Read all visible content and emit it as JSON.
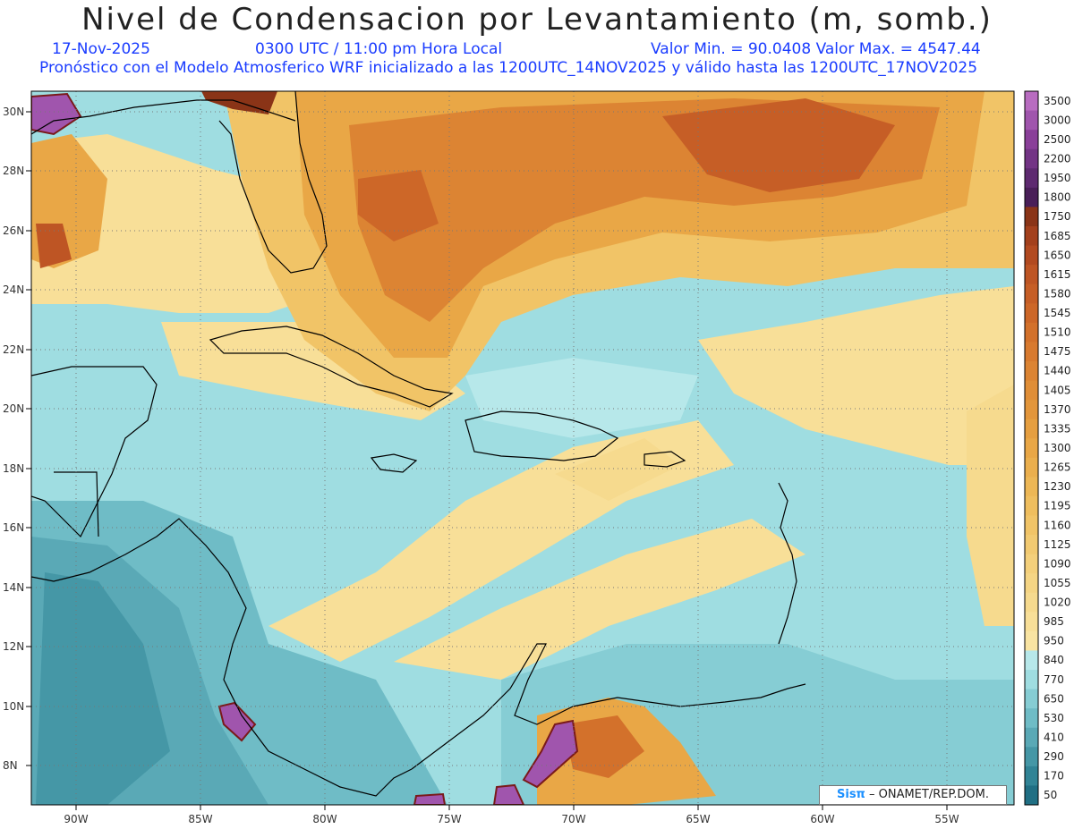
{
  "header": {
    "title": "Nivel de Condensacion por Levantamiento (m, somb.)",
    "date": "17-Nov-2025",
    "time": "0300 UTC / 11:00 pm Hora Local",
    "minmax": "Valor Min. = 90.0408   Valor Max. = 4547.44",
    "subtitle": "Pronóstico con el Modelo Atmosferico WRF inicializado a las 1200UTC_14NOV2025 y válido hasta las  1200UTC_17NOV2025"
  },
  "axes": {
    "lat_labels": [
      "30N",
      "28N",
      "26N",
      "24N",
      "22N",
      "20N",
      "18N",
      "16N",
      "14N",
      "12N",
      "10N",
      "8N"
    ],
    "lon_labels": [
      "90W",
      "85W",
      "80W",
      "75W",
      "70W",
      "65W",
      "60W",
      "55W"
    ]
  },
  "legend": {
    "levels": [
      "3500",
      "3000",
      "2500",
      "2200",
      "1950",
      "1800",
      "1750",
      "1685",
      "1650",
      "1615",
      "1580",
      "1545",
      "1510",
      "1475",
      "1440",
      "1405",
      "1370",
      "1335",
      "1300",
      "1265",
      "1230",
      "1195",
      "1160",
      "1125",
      "1090",
      "1055",
      "1020",
      "985",
      "950",
      "840",
      "770",
      "650",
      "530",
      "410",
      "290",
      "170",
      "50"
    ],
    "colors": [
      "#b86cc0",
      "#a055ad",
      "#8a3f99",
      "#733485",
      "#5e2a70",
      "#4a1f58",
      "#8a3417",
      "#a3401c",
      "#b24a20",
      "#be5524",
      "#c65e26",
      "#cd6728",
      "#d3712b",
      "#d87a2f",
      "#dc8433",
      "#e08e37",
      "#e3963b",
      "#e69f40",
      "#e9a746",
      "#ebaf4d",
      "#edb755",
      "#efbe5e",
      "#f1c467",
      "#f2ca71",
      "#f4d07b",
      "#f5d584",
      "#f6da8e",
      "#f8df98",
      "#f9e4a2",
      "#b7e8ea",
      "#9fdde1",
      "#86cdd4",
      "#6fbcc6",
      "#5aa9b6",
      "#4597a6",
      "#318496",
      "#206f84"
    ]
  },
  "credit": {
    "brand": "Sisπ",
    "text": " – ONAMET/REP.DOM."
  }
}
